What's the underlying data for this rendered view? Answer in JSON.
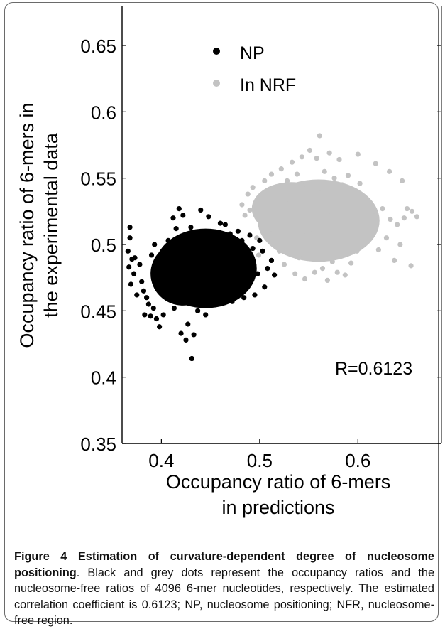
{
  "figure": {
    "caption_label": "Figure 4",
    "caption_title": "Estimation of curvature-dependent degree of nucleosome positioning",
    "caption_text": ". Black and grey dots represent the occupancy ratios and the nucleosome-free ratios of 4096 6-mer nucleotides, respectively. The estimated correlation coefficient is 0.6123; NP, nucleosome positioning; NFR, nucleosome-free region."
  },
  "chart_data": {
    "type": "scatter",
    "title": "",
    "xlabel": [
      "Occupancy ratio of 6-mers",
      "in predictions"
    ],
    "ylabel": [
      "Occupancy ratio of 6-mers in",
      "the experimental data"
    ],
    "xlim": [
      0.36,
      0.685
    ],
    "ylim": [
      0.35,
      0.68
    ],
    "xticks": [
      "0.4",
      "0.5",
      "0.6"
    ],
    "yticks": [
      "0.35",
      "0.4",
      "0.45",
      "0.5",
      "0.55",
      "0.6",
      "0.65"
    ],
    "legend_position": "top-center",
    "annotation": "R=0.6123",
    "colors": {
      "np": "#000000",
      "nrf": "#c3c3c3",
      "axis": "#000000"
    },
    "series": [
      {
        "name": "NP",
        "color": "#000000",
        "points": [
          [
            0.368,
            0.513
          ],
          [
            0.368,
            0.505
          ],
          [
            0.366,
            0.495
          ],
          [
            0.37,
            0.489
          ],
          [
            0.367,
            0.483
          ],
          [
            0.372,
            0.478
          ],
          [
            0.369,
            0.47
          ],
          [
            0.375,
            0.462
          ],
          [
            0.373,
            0.49
          ],
          [
            0.378,
            0.485
          ],
          [
            0.38,
            0.472
          ],
          [
            0.382,
            0.465
          ],
          [
            0.385,
            0.46
          ],
          [
            0.383,
            0.447
          ],
          [
            0.389,
            0.446
          ],
          [
            0.387,
            0.455
          ],
          [
            0.392,
            0.452
          ],
          [
            0.395,
            0.444
          ],
          [
            0.39,
            0.492
          ],
          [
            0.393,
            0.5
          ],
          [
            0.397,
            0.47
          ],
          [
            0.399,
            0.484
          ],
          [
            0.398,
            0.438
          ],
          [
            0.402,
            0.447
          ],
          [
            0.405,
            0.46
          ],
          [
            0.403,
            0.493
          ],
          [
            0.407,
            0.503
          ],
          [
            0.408,
            0.478
          ],
          [
            0.41,
            0.466
          ],
          [
            0.412,
            0.52
          ],
          [
            0.415,
            0.512
          ],
          [
            0.413,
            0.452
          ],
          [
            0.418,
            0.527
          ],
          [
            0.42,
            0.433
          ],
          [
            0.422,
            0.522
          ],
          [
            0.425,
            0.428
          ],
          [
            0.427,
            0.44
          ],
          [
            0.431,
            0.414
          ],
          [
            0.433,
            0.432
          ],
          [
            0.43,
            0.513
          ],
          [
            0.437,
            0.45
          ],
          [
            0.44,
            0.526
          ],
          [
            0.445,
            0.447
          ],
          [
            0.448,
            0.521
          ],
          [
            0.455,
            0.455
          ],
          [
            0.46,
            0.516
          ],
          [
            0.466,
            0.463
          ],
          [
            0.47,
            0.508
          ],
          [
            0.476,
            0.468
          ],
          [
            0.482,
            0.503
          ],
          [
            0.488,
            0.47
          ],
          [
            0.493,
            0.497
          ],
          [
            0.498,
            0.478
          ],
          [
            0.503,
            0.495
          ],
          [
            0.508,
            0.482
          ],
          [
            0.512,
            0.488
          ],
          [
            0.515,
            0.477
          ],
          [
            0.505,
            0.468
          ],
          [
            0.5,
            0.503
          ],
          [
            0.495,
            0.462
          ],
          [
            0.49,
            0.507
          ],
          [
            0.484,
            0.46
          ],
          [
            0.478,
            0.51
          ],
          [
            0.472,
            0.457
          ],
          [
            0.465,
            0.515
          ]
        ]
      },
      {
        "name": "In NRF",
        "color": "#c3c3c3",
        "points": [
          [
            0.482,
            0.53
          ],
          [
            0.488,
            0.538
          ],
          [
            0.485,
            0.522
          ],
          [
            0.493,
            0.543
          ],
          [
            0.49,
            0.526
          ],
          [
            0.497,
            0.505
          ],
          [
            0.499,
            0.492
          ],
          [
            0.502,
            0.513
          ],
          [
            0.505,
            0.548
          ],
          [
            0.508,
            0.53
          ],
          [
            0.512,
            0.553
          ],
          [
            0.515,
            0.52
          ],
          [
            0.518,
            0.542
          ],
          [
            0.52,
            0.495
          ],
          [
            0.522,
            0.557
          ],
          [
            0.525,
            0.485
          ],
          [
            0.528,
            0.548
          ],
          [
            0.53,
            0.531
          ],
          [
            0.533,
            0.562
          ],
          [
            0.536,
            0.478
          ],
          [
            0.538,
            0.553
          ],
          [
            0.54,
            0.49
          ],
          [
            0.543,
            0.566
          ],
          [
            0.546,
            0.474
          ],
          [
            0.548,
            0.545
          ],
          [
            0.551,
            0.571
          ],
          [
            0.554,
            0.5
          ],
          [
            0.556,
            0.479
          ],
          [
            0.558,
            0.565
          ],
          [
            0.561,
            0.582
          ],
          [
            0.564,
            0.482
          ],
          [
            0.566,
            0.555
          ],
          [
            0.569,
            0.473
          ],
          [
            0.571,
            0.569
          ],
          [
            0.574,
            0.487
          ],
          [
            0.576,
            0.55
          ],
          [
            0.579,
            0.479
          ],
          [
            0.581,
            0.564
          ],
          [
            0.584,
            0.545
          ],
          [
            0.587,
            0.477
          ],
          [
            0.59,
            0.552
          ],
          [
            0.593,
            0.486
          ],
          [
            0.596,
            0.54
          ],
          [
            0.599,
            0.495
          ],
          [
            0.602,
            0.546
          ],
          [
            0.606,
            0.502
          ],
          [
            0.61,
            0.533
          ],
          [
            0.613,
            0.51
          ],
          [
            0.617,
            0.525
          ],
          [
            0.621,
            0.496
          ],
          [
            0.625,
            0.527
          ],
          [
            0.629,
            0.505
          ],
          [
            0.633,
            0.519
          ],
          [
            0.637,
            0.488
          ],
          [
            0.64,
            0.515
          ],
          [
            0.643,
            0.5
          ],
          [
            0.647,
            0.52
          ],
          [
            0.65,
            0.527
          ],
          [
            0.655,
            0.525
          ],
          [
            0.654,
            0.484
          ],
          [
            0.66,
            0.521
          ],
          [
            0.645,
            0.548
          ],
          [
            0.632,
            0.555
          ],
          [
            0.618,
            0.561
          ],
          [
            0.6,
            0.568
          ]
        ]
      }
    ]
  }
}
